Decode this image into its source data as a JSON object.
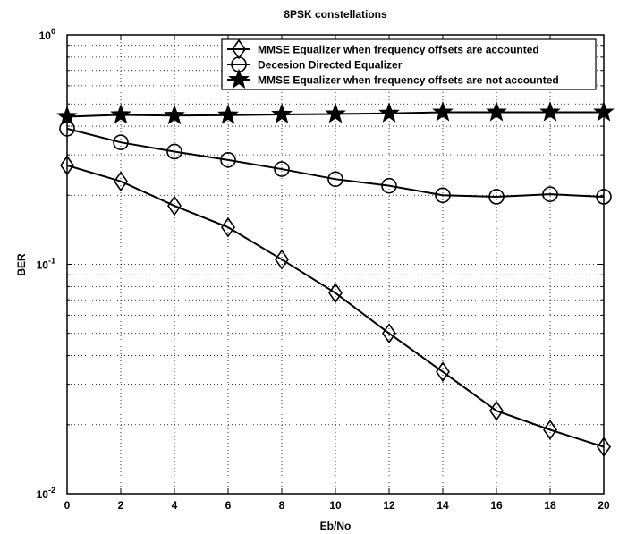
{
  "chart_data": {
    "type": "line",
    "title": "8PSK constellations",
    "xlabel": "Eb/No",
    "ylabel": "BER",
    "yscale": "log",
    "xlim": [
      0,
      20
    ],
    "ylim": [
      0.01,
      1
    ],
    "grid": true,
    "legend_position": "top-right",
    "x_ticks": [
      "0",
      "2",
      "4",
      "6",
      "8",
      "10",
      "12",
      "14",
      "16",
      "18",
      "20"
    ],
    "y_ticks": [
      {
        "base": "10",
        "exp": "-2"
      },
      {
        "base": "10",
        "exp": "-1"
      },
      {
        "base": "10",
        "exp": "0"
      }
    ],
    "x": [
      0,
      2,
      4,
      6,
      8,
      10,
      12,
      14,
      16,
      18,
      20
    ],
    "series": [
      {
        "name": "MMSE Equalizer when frequency offsets are accounted",
        "marker": "diamond",
        "values": [
          0.27,
          0.23,
          0.18,
          0.145,
          0.105,
          0.075,
          0.05,
          0.034,
          0.023,
          0.019,
          0.016
        ]
      },
      {
        "name": "Decesion Directed Equalizer",
        "marker": "circle",
        "values": [
          0.39,
          0.34,
          0.31,
          0.285,
          0.26,
          0.235,
          0.22,
          0.2,
          0.197,
          0.202,
          0.197
        ]
      },
      {
        "name": "MMSE Equalizer when frequency offsets are not accounted",
        "marker": "star",
        "values": [
          0.44,
          0.448,
          0.445,
          0.447,
          0.45,
          0.452,
          0.455,
          0.46,
          0.46,
          0.46,
          0.46
        ]
      }
    ]
  }
}
